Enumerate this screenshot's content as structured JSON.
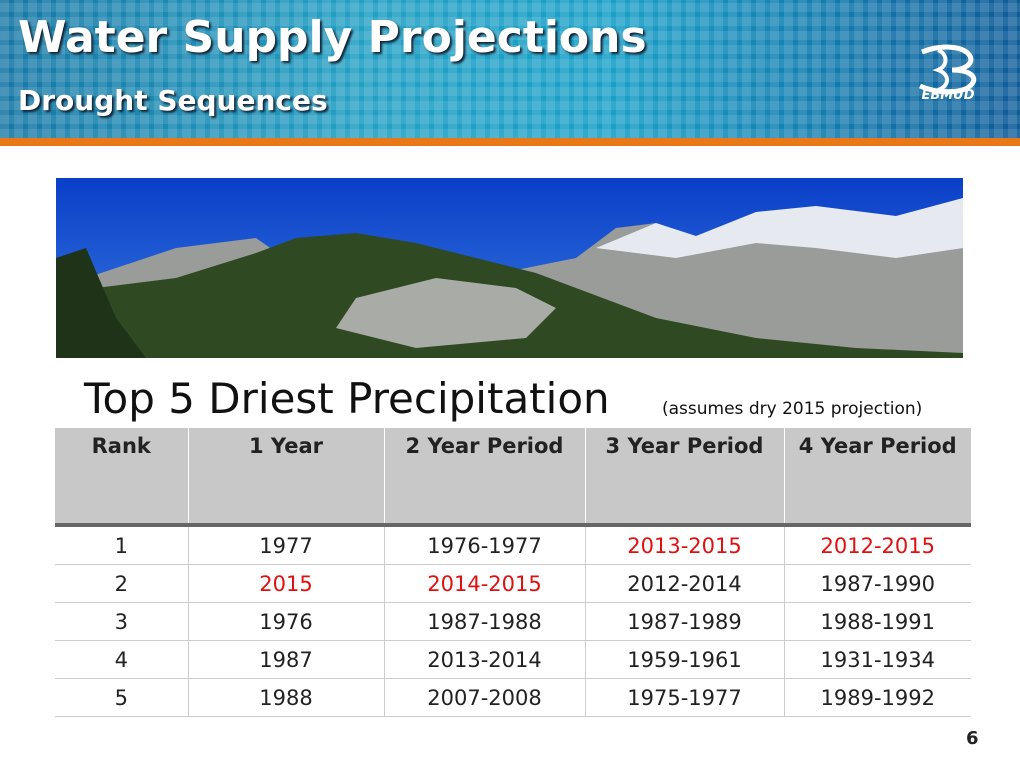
{
  "header": {
    "title": "Water Supply Projections",
    "subtitle": "Drought Sequences",
    "logo": "EBMUD"
  },
  "table": {
    "title": "Top 5 Driest Precipitation",
    "note": "(assumes dry 2015 projection)",
    "columns": [
      "Rank",
      "1 Year",
      "2 Year Period",
      "3 Year Period",
      "4 Year Period"
    ],
    "rows": [
      [
        "1",
        "1977",
        "1976-1977",
        "2013-2015",
        "2012-2015"
      ],
      [
        "2",
        "2015",
        "2014-2015",
        "2012-2014",
        "1987-1990"
      ],
      [
        "3",
        "1976",
        "1987-1988",
        "1987-1989",
        "1988-1991"
      ],
      [
        "4",
        "1987",
        "2013-2014",
        "1959-1961",
        "1931-1934"
      ],
      [
        "5",
        "1988",
        "2007-2008",
        "1975-1977",
        "1989-1992"
      ]
    ],
    "highlight": {
      "color": "#e01010",
      "cells": [
        [
          0,
          3
        ],
        [
          0,
          4
        ],
        [
          1,
          1
        ],
        [
          1,
          2
        ]
      ]
    }
  },
  "page_number": "6"
}
